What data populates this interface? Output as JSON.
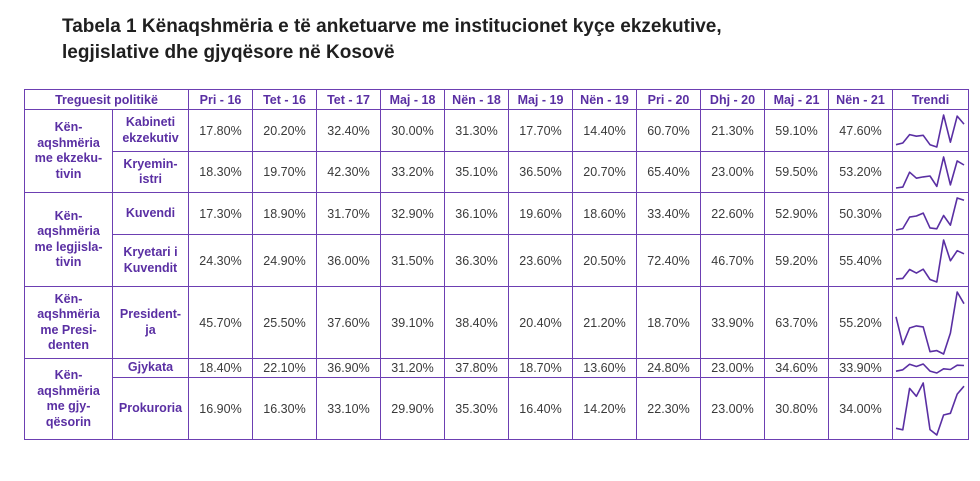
{
  "title": {
    "line1": "Tabela 1 Kënaqshmëria e të anketuarve me institucionet kyçe ekzekutive,",
    "line2": "legjislative dhe gjyqësore në Kosovë"
  },
  "table": {
    "header_first": "Treguesit politikë",
    "columns": [
      "Pri - 16",
      "Tet - 16",
      "Tet - 17",
      "Maj - 18",
      "Nën - 18",
      "Maj - 19",
      "Nën - 19",
      "Pri - 20",
      "Dhj - 20",
      "Maj - 21",
      "Nën - 21"
    ],
    "header_trend": "Trendi",
    "trend_color": "#5a2fa3",
    "groups": [
      {
        "label": [
          "Kën-",
          "aqshmëria",
          "me ekzeku-",
          "tivin"
        ],
        "rows": [
          {
            "label": [
              "Kabineti",
              "ekzekutiv"
            ],
            "values": [
              "17.80%",
              "20.20%",
              "32.40%",
              "30.00%",
              "31.30%",
              "17.70%",
              "14.40%",
              "60.70%",
              "21.30%",
              "59.10%",
              "47.60%"
            ]
          },
          {
            "label": [
              "Kryemin-",
              "istri"
            ],
            "values": [
              "18.30%",
              "19.70%",
              "42.30%",
              "33.20%",
              "35.10%",
              "36.50%",
              "20.70%",
              "65.40%",
              "23.00%",
              "59.50%",
              "53.20%"
            ]
          }
        ]
      },
      {
        "label": [
          "Kën-",
          "aqshmëria",
          "me legjisla-",
          "tivin"
        ],
        "rows": [
          {
            "label": [
              "Kuvendi"
            ],
            "values": [
              "17.30%",
              "18.90%",
              "31.70%",
              "32.90%",
              "36.10%",
              "19.60%",
              "18.60%",
              "33.40%",
              "22.60%",
              "52.90%",
              "50.30%"
            ]
          },
          {
            "label": [
              "Kryetari i",
              "Kuvendit"
            ],
            "values": [
              "24.30%",
              "24.90%",
              "36.00%",
              "31.50%",
              "36.30%",
              "23.60%",
              "20.50%",
              "72.40%",
              "46.70%",
              "59.20%",
              "55.40%"
            ]
          }
        ]
      },
      {
        "label": [
          "Kën-",
          "aqshmëria",
          "me Presi-",
          "denten"
        ],
        "rows": [
          {
            "label": [
              "President-",
              "ja"
            ],
            "values": [
              "45.70%",
              "25.50%",
              "37.60%",
              "39.10%",
              "38.40%",
              "20.40%",
              "21.20%",
              "18.70%",
              "33.90%",
              "63.70%",
              "55.20%"
            ]
          }
        ]
      },
      {
        "label": [
          "Kën-",
          "aqshmëria",
          "me gjy-",
          "qësorin"
        ],
        "rows": [
          {
            "label": [
              "Gjykata"
            ],
            "values": [
              "18.40%",
              "22.10%",
              "36.90%",
              "31.20%",
              "37.80%",
              "18.70%",
              "13.60%",
              "24.80%",
              "23.00%",
              "34.60%",
              "33.90%"
            ]
          },
          {
            "label": [
              "Prokuroria"
            ],
            "values": [
              "16.90%",
              "16.30%",
              "33.10%",
              "29.90%",
              "35.30%",
              "16.40%",
              "14.20%",
              "22.30%",
              "23.00%",
              "30.80%",
              "34.00%"
            ]
          }
        ]
      }
    ]
  }
}
